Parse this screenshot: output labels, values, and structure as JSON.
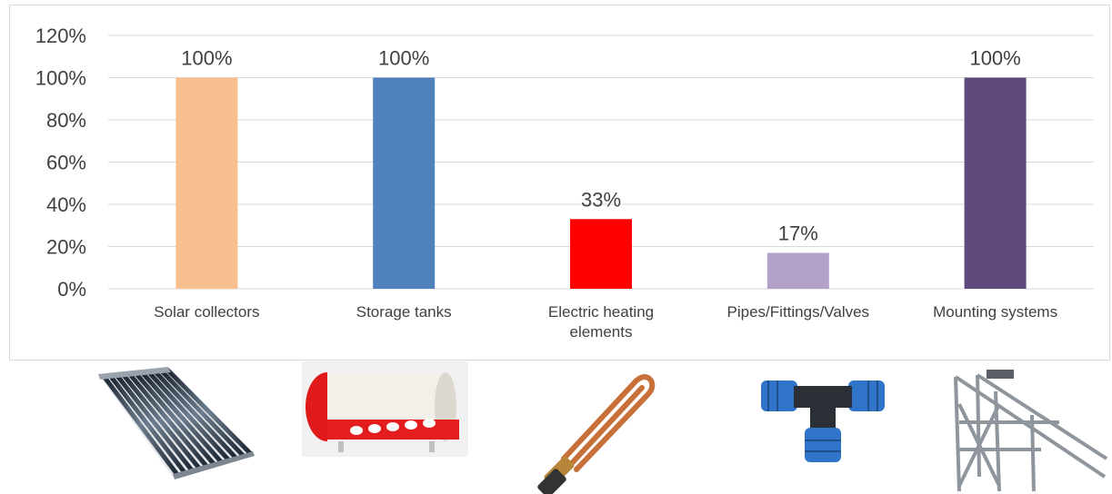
{
  "chart_data": {
    "type": "bar",
    "categories": [
      "Solar collectors",
      "Storage tanks",
      "Electric heating elements",
      "Pipes/Fittings/Valves",
      "Mounting systems"
    ],
    "category_lines": [
      [
        "Solar collectors"
      ],
      [
        "Storage tanks"
      ],
      [
        "Electric heating",
        "elements"
      ],
      [
        "Pipes/Fittings/Valves"
      ],
      [
        "Mounting systems"
      ]
    ],
    "values": [
      100,
      100,
      33,
      17,
      100
    ],
    "data_labels": [
      "100%",
      "100%",
      "33%",
      "17%",
      "100%"
    ],
    "colors": [
      "#f9bf8f",
      "#4f81bd",
      "#ff0000",
      "#b3a2c7",
      "#604a7b"
    ],
    "title": "",
    "xlabel": "",
    "ylabel": "",
    "ylim": [
      0,
      120
    ],
    "yticks": [
      0,
      20,
      40,
      60,
      80,
      100,
      120
    ],
    "ytick_labels": [
      "0%",
      "20%",
      "40%",
      "60%",
      "80%",
      "100%",
      "120%"
    ],
    "grid": true,
    "legend": "none"
  },
  "illustrations": [
    {
      "name": "solar-collector-icon",
      "depicts": "evacuated tube solar collector"
    },
    {
      "name": "storage-tank-icon",
      "depicts": "white and red water storage tank"
    },
    {
      "name": "heating-element-icon",
      "depicts": "copper electric heating element"
    },
    {
      "name": "pipe-fitting-icon",
      "depicts": "blue tee pipe fitting"
    },
    {
      "name": "mounting-system-icon",
      "depicts": "metal mounting frame"
    }
  ]
}
